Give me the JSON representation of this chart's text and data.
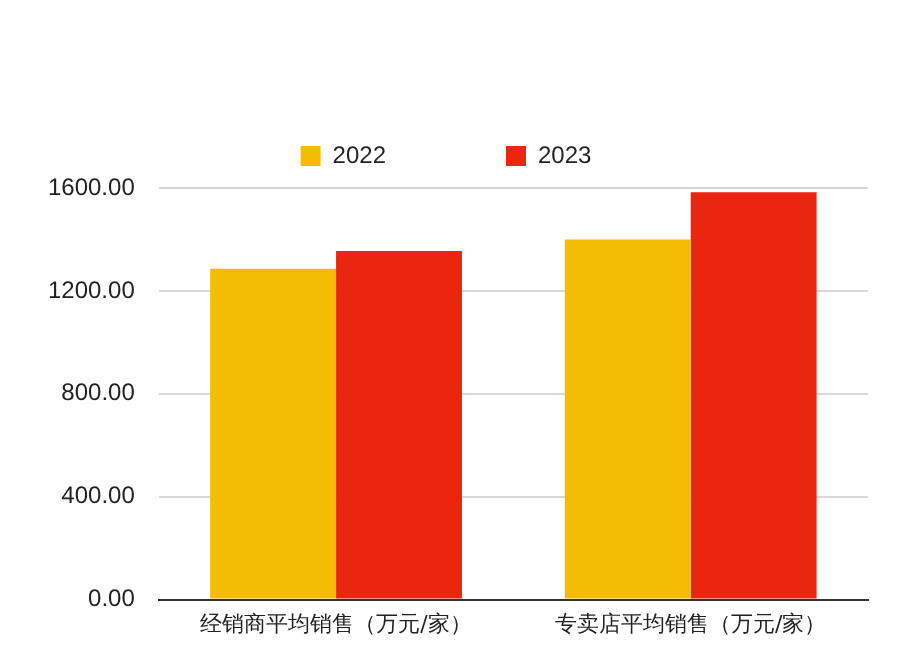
{
  "chart_data": {
    "type": "bar",
    "categories": [
      "经销商平均销售（万元/家）",
      "专卖店平均销售（万元/家）"
    ],
    "series": [
      {
        "name": "2022",
        "color": "#f5bc05",
        "values": [
          1286,
          1400
        ]
      },
      {
        "name": "2023",
        "color": "#ea2510",
        "values": [
          1355,
          1583
        ]
      }
    ],
    "ylim": [
      0,
      1600
    ],
    "yticks": [
      {
        "value": 0,
        "label": "0.00"
      },
      {
        "value": 400,
        "label": "400.00"
      },
      {
        "value": 800,
        "label": "800.00"
      },
      {
        "value": 1200,
        "label": "1200.00"
      },
      {
        "value": 1600,
        "label": "1600.00"
      }
    ],
    "grid": "y",
    "legend": "top"
  }
}
